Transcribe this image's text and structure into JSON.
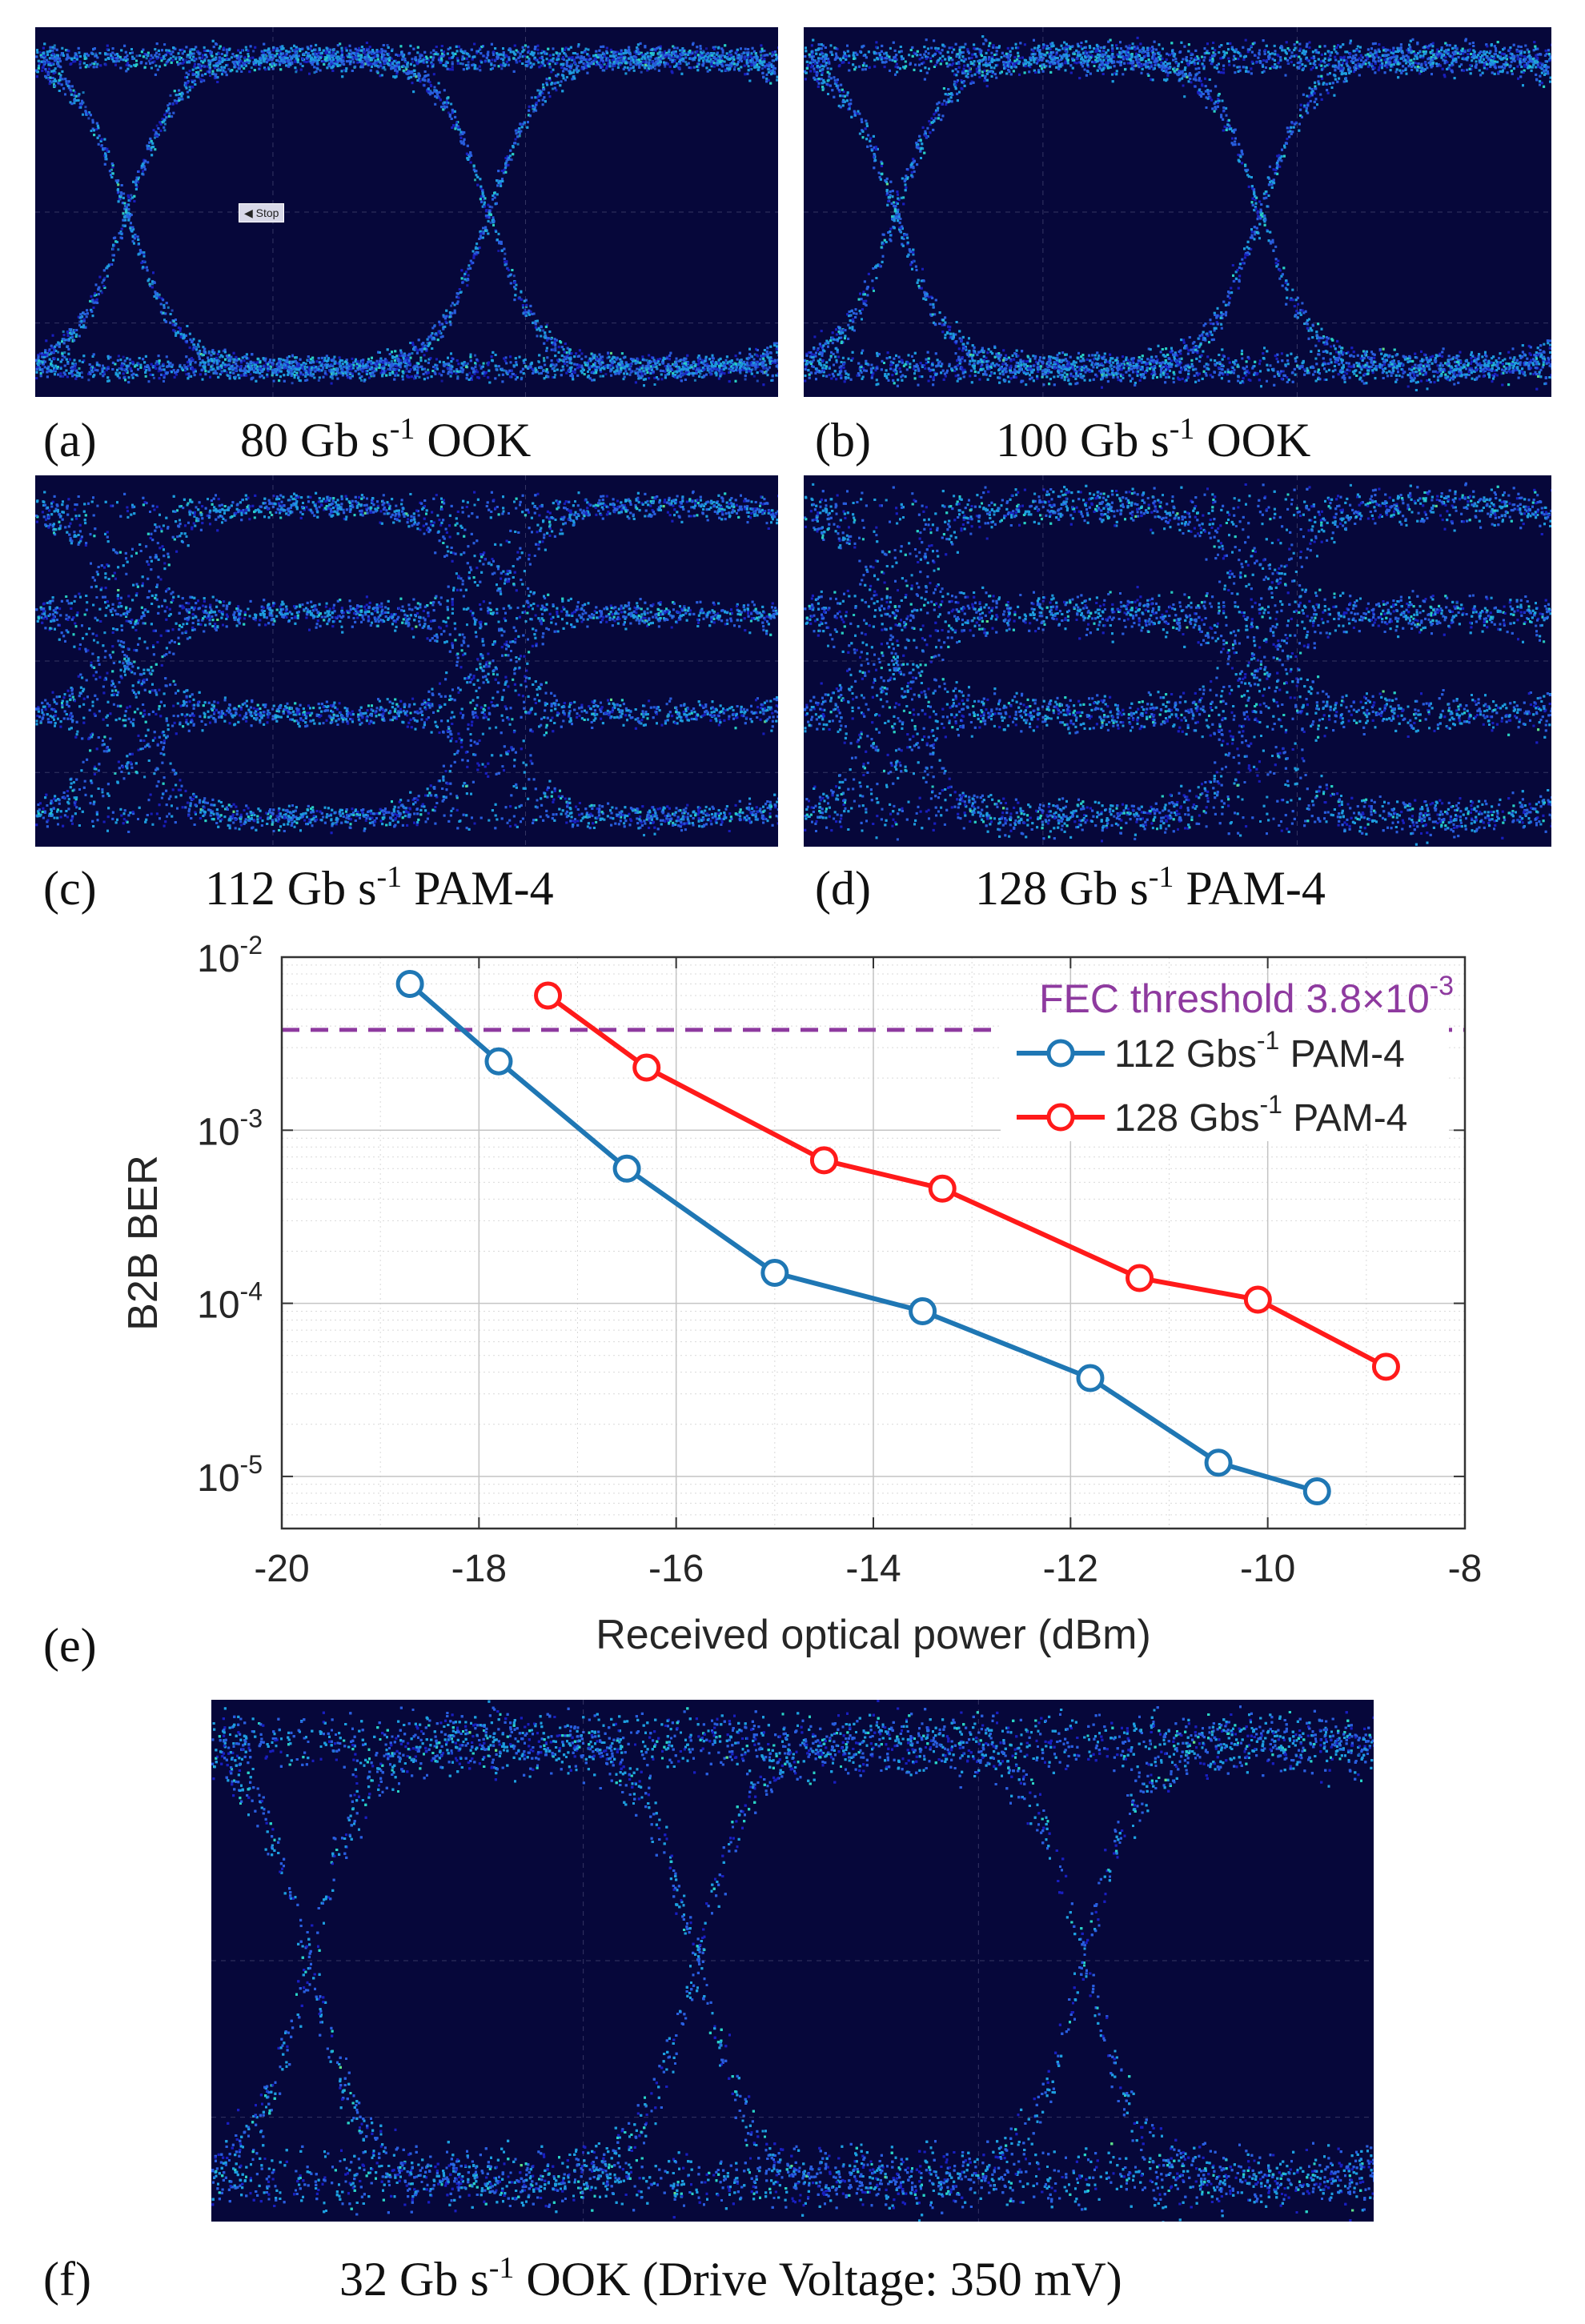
{
  "panels": [
    {
      "label": "(a)",
      "rate": "80 Gb s",
      "exp": "-1",
      "format": "OOK",
      "variant": "ook-open",
      "badge": "Stop"
    },
    {
      "label": "(b)",
      "rate": "100 Gb s",
      "exp": "-1",
      "format": "OOK",
      "variant": "ook-mid"
    },
    {
      "label": "(c)",
      "rate": "112 Gb s",
      "exp": "-1",
      "format": "PAM-4",
      "variant": "pam4"
    },
    {
      "label": "(d)",
      "rate": "128 Gb s",
      "exp": "-1",
      "format": "PAM-4",
      "variant": "pam4-noisy"
    },
    {
      "label": "(f)",
      "rate": "32 Gb s",
      "exp": "-1",
      "format": "OOK (Drive Voltage: 350 mV)",
      "variant": "ook-wide"
    }
  ],
  "chart_label": "(e)",
  "colors": {
    "series1": "#1f77b4",
    "series2": "#ff1a1a",
    "threshold": "#8e3a9f"
  },
  "chart_data": {
    "type": "line",
    "xlabel": "Received optical power (dBm)",
    "ylabel": "B2B BER",
    "xlim": [
      -20,
      -8
    ],
    "ylim": [
      5e-06,
      0.01
    ],
    "yscale": "log",
    "xticks": [
      -20,
      -18,
      -16,
      -14,
      -12,
      -10,
      -8
    ],
    "xtick_labels": [
      "-20",
      "-18",
      "-16",
      "-14",
      "-12",
      "-10",
      "-8"
    ],
    "yticks": [
      -5,
      -4,
      -3,
      -2
    ],
    "ytick_base": "10",
    "grid": true,
    "legend_position": "top-right",
    "threshold": {
      "value": 0.0038,
      "label": "FEC threshold 3.8×10",
      "exp": "-3"
    },
    "series": [
      {
        "name": "112 Gbs",
        "exp": "-1",
        "suffix": "PAM-4",
        "x": [
          -18.7,
          -17.8,
          -16.5,
          -15.0,
          -13.5,
          -11.8,
          -10.5,
          -9.5
        ],
        "y": [
          0.007,
          0.0025,
          0.0006,
          0.00015,
          9e-05,
          3.7e-05,
          1.2e-05,
          8.2e-06
        ]
      },
      {
        "name": "128 Gbs",
        "exp": "-1",
        "suffix": "PAM-4",
        "x": [
          -17.3,
          -16.3,
          -14.5,
          -13.3,
          -11.3,
          -10.1,
          -8.8
        ],
        "y": [
          0.006,
          0.0023,
          0.00067,
          0.00046,
          0.00014,
          0.000105,
          4.3e-05
        ]
      }
    ]
  }
}
